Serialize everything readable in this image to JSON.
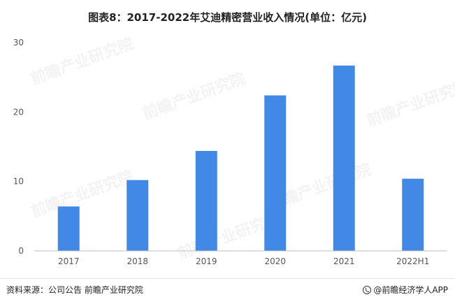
{
  "chart_data": {
    "type": "bar",
    "title": "图表8：2017-2022年艾迪精密营业收入情况(单位：亿元)",
    "categories": [
      "2017",
      "2018",
      "2019",
      "2020",
      "2021",
      "2022H1"
    ],
    "values": [
      6.4,
      10.2,
      14.4,
      22.4,
      26.7,
      10.4
    ],
    "ylim": [
      0,
      30
    ],
    "yticks": [
      0,
      10,
      20,
      30
    ],
    "xlabel": "",
    "ylabel": "",
    "grid": false,
    "legend": "none",
    "bar_color": "#4189e4"
  },
  "footer": {
    "source": "资料来源：公司公告 前瞻产业研究院",
    "brand": "@前瞻经济学人APP"
  },
  "watermark": {
    "text": "前瞻产业研究院"
  }
}
